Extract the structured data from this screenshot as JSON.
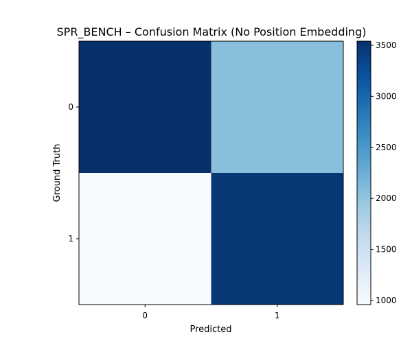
{
  "chart_data": {
    "type": "heatmap",
    "title": "SPR_BENCH – Confusion Matrix (No Position Embedding)",
    "xlabel": "Predicted",
    "ylabel": "Ground Truth",
    "x_ticks": [
      "0",
      "1"
    ],
    "y_ticks": [
      "0",
      "1"
    ],
    "matrix": [
      [
        3540,
        2060
      ],
      [
        960,
        3470
      ]
    ],
    "colormap": "Blues",
    "colormap_stops": [
      "#f7fbff",
      "#deebf7",
      "#c6dbef",
      "#9ecae1",
      "#6baed6",
      "#4292c6",
      "#2171b5",
      "#08519c",
      "#08306b"
    ],
    "colorbar": {
      "range": [
        960,
        3540
      ],
      "ticks": [
        1000,
        1500,
        2000,
        2500,
        3000,
        3500
      ],
      "tick_labels": [
        "1000",
        "1500",
        "2000",
        "2500",
        "3000",
        "3500"
      ]
    },
    "grid": false
  }
}
